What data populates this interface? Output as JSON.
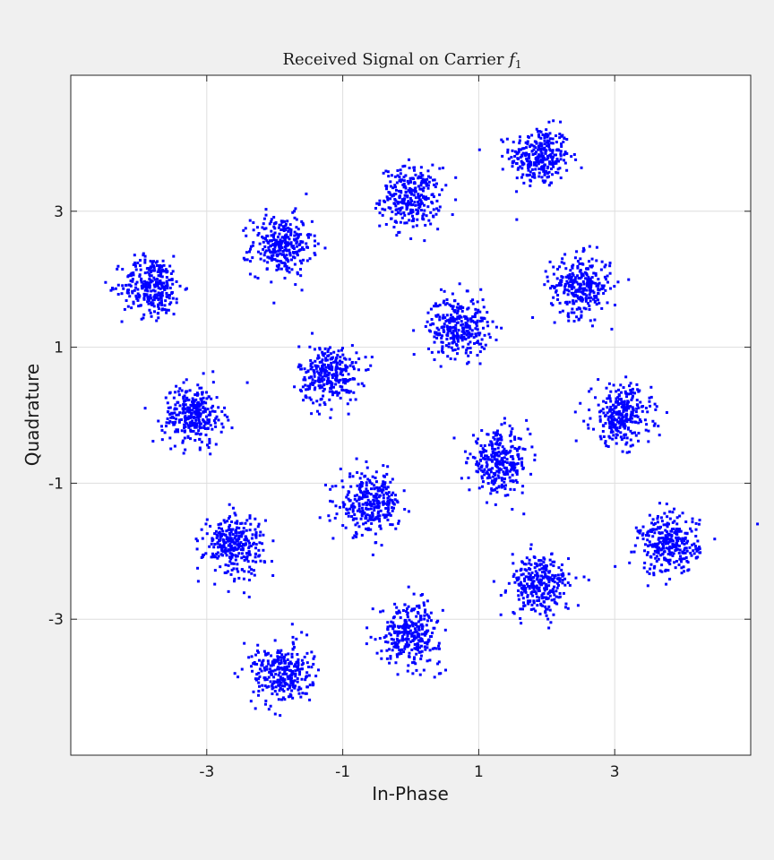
{
  "chart_data": {
    "type": "scatter",
    "title": "Received Signal on Carrier",
    "title_symbol": "f",
    "title_subscript": "1",
    "xlabel": "In-Phase",
    "ylabel": "Quadrature",
    "xlim": [
      -5,
      5
    ],
    "ylim": [
      -5,
      5
    ],
    "xticks": [
      -3,
      -1,
      1,
      3
    ],
    "yticks": [
      -3,
      -1,
      1,
      3
    ],
    "xtick_labels": [
      "-3",
      "-1",
      "1",
      "3"
    ],
    "ytick_labels": [
      "-3",
      "-1",
      "1",
      "3"
    ],
    "grid": true,
    "marker_color": "#0000ff",
    "series": [
      {
        "cluster_centers": [
          {
            "x": 1.9,
            "y": 3.8
          },
          {
            "x": 0.0,
            "y": 3.2
          },
          {
            "x": -1.9,
            "y": 2.5
          },
          {
            "x": -3.8,
            "y": 1.9
          },
          {
            "x": 2.5,
            "y": 1.9
          },
          {
            "x": 0.7,
            "y": 1.3
          },
          {
            "x": -1.2,
            "y": 0.6
          },
          {
            "x": -3.2,
            "y": 0.0
          },
          {
            "x": 3.1,
            "y": 0.0
          },
          {
            "x": 1.3,
            "y": -0.7
          },
          {
            "x": -0.6,
            "y": -1.3
          },
          {
            "x": -2.6,
            "y": -1.9
          },
          {
            "x": 3.8,
            "y": -1.9
          },
          {
            "x": 1.9,
            "y": -2.5
          },
          {
            "x": 0.0,
            "y": -3.2
          },
          {
            "x": -1.9,
            "y": -3.8
          }
        ],
        "points_per_cluster": 300,
        "noise_std": 0.22,
        "outliers": [
          {
            "x": 5.1,
            "y": -1.6
          }
        ]
      }
    ]
  }
}
